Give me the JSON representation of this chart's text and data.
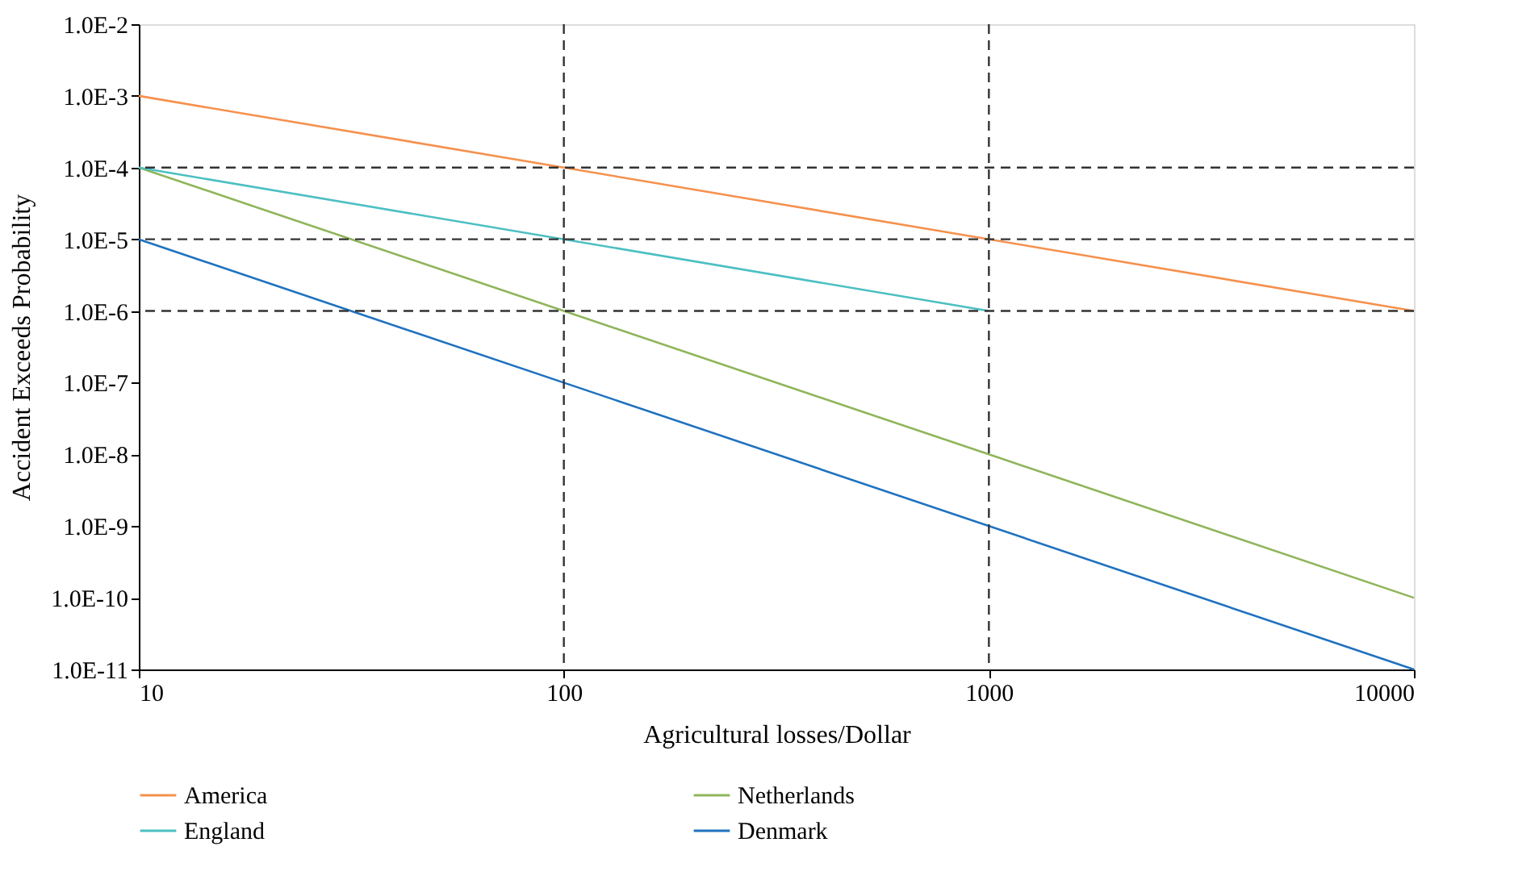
{
  "chart_data": {
    "type": "line",
    "xlabel": "Agricultural losses/Dollar",
    "ylabel": "Accident Exceeds Probability",
    "log": "xy",
    "grid": false,
    "legend": "bottom",
    "marker": "none",
    "line_style": "solid",
    "xlim": [
      10,
      10000
    ],
    "xticks": [
      10,
      100,
      1000,
      10000
    ],
    "ylim": [
      1e-11,
      0.01
    ],
    "yticks": [
      {
        "value": 1e-11,
        "label": "1.0E-11"
      },
      {
        "value": 1e-10,
        "label": "1.0E-10"
      },
      {
        "value": 1e-09,
        "label": "1.0E-9"
      },
      {
        "value": 1e-08,
        "label": "1.0E-8"
      },
      {
        "value": 1e-07,
        "label": "1.0E-7"
      },
      {
        "value": 1e-06,
        "label": "1.0E-6"
      },
      {
        "value": 1e-05,
        "label": "1.0E-5"
      },
      {
        "value": 0.0001,
        "label": "1.0E-4"
      },
      {
        "value": 0.001,
        "label": "1.0E-3"
      },
      {
        "value": 0.01,
        "label": "1.0E-2"
      }
    ],
    "series": [
      {
        "name": "America",
        "color": "#f5914e",
        "x": [
          10,
          10000
        ],
        "values": [
          0.001,
          1e-06
        ]
      },
      {
        "name": "Netherlands",
        "color": "#8fb55a",
        "x": [
          10,
          100,
          1000,
          10000
        ],
        "values": [
          0.0001,
          1e-06,
          1e-08,
          1e-10
        ]
      },
      {
        "name": "England",
        "color": "#4cbfc2",
        "x": [
          10,
          1000
        ],
        "values": [
          0.0001,
          1e-06
        ]
      },
      {
        "name": "Denmark",
        "color": "#1f72bf",
        "x": [
          10,
          10000
        ],
        "values": [
          1e-05,
          1e-11
        ]
      }
    ],
    "ref_lines": [
      {
        "axis": "x",
        "value": 100,
        "line_style": "dashed",
        "color": "#333333"
      },
      {
        "axis": "x",
        "value": 1000,
        "line_style": "dashed",
        "color": "#333333"
      },
      {
        "axis": "y",
        "value": 0.0001,
        "line_style": "dashed",
        "color": "#333333"
      },
      {
        "axis": "y",
        "value": 1e-05,
        "line_style": "dashed",
        "color": "#333333"
      },
      {
        "axis": "y",
        "value": 1e-06,
        "line_style": "dashed",
        "color": "#333333"
      }
    ]
  }
}
